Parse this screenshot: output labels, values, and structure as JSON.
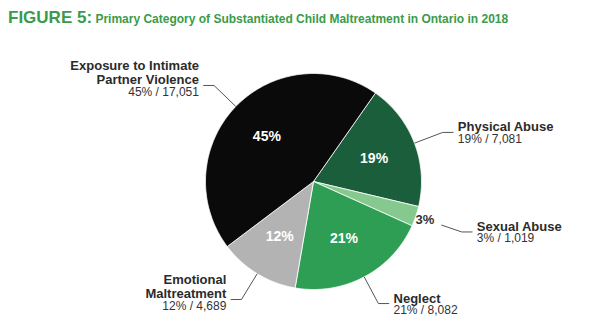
{
  "chart_data": {
    "type": "pie",
    "title": "FIGURE 5: Primary Category of Substantiated Child Maltreatment in Ontario in 2018",
    "categories": [
      "Physical Abuse",
      "Sexual Abuse",
      "Neglect",
      "Emotional\nMaltreatment",
      "Exposure to Intimate\nPartner Violence"
    ],
    "values": [
      19,
      3,
      21,
      12,
      45
    ],
    "value_labels": [
      "19%",
      "3%",
      "21%",
      "12%",
      "45%"
    ],
    "slice_labels": [
      "19% / 7,081",
      "3% / 1,019",
      "21% / 8,082",
      "12% / 4,689",
      "45% / 17,051"
    ],
    "colors": [
      "#1b5e3b",
      "#86c98f",
      "#2e9e55",
      "#b3b3b3",
      "#0a0a0a"
    ],
    "data_labels": true
  }
}
